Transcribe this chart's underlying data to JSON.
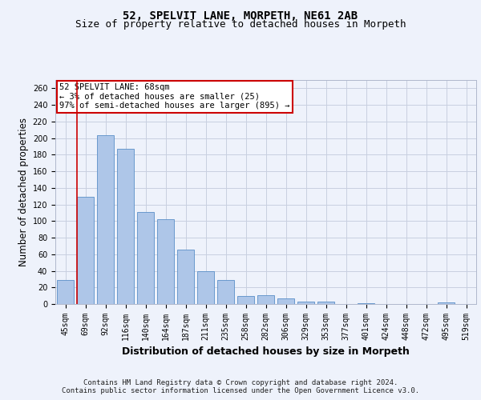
{
  "title_line1": "52, SPELVIT LANE, MORPETH, NE61 2AB",
  "title_line2": "Size of property relative to detached houses in Morpeth",
  "xlabel": "Distribution of detached houses by size in Morpeth",
  "ylabel": "Number of detached properties",
  "categories": [
    "45sqm",
    "69sqm",
    "92sqm",
    "116sqm",
    "140sqm",
    "164sqm",
    "187sqm",
    "211sqm",
    "235sqm",
    "258sqm",
    "282sqm",
    "306sqm",
    "329sqm",
    "353sqm",
    "377sqm",
    "401sqm",
    "424sqm",
    "448sqm",
    "472sqm",
    "495sqm",
    "519sqm"
  ],
  "values": [
    29,
    129,
    203,
    187,
    111,
    102,
    66,
    40,
    29,
    10,
    11,
    7,
    3,
    3,
    0,
    1,
    0,
    0,
    0,
    2,
    0
  ],
  "bar_color": "#aec6e8",
  "bar_edge_color": "#5a8fc8",
  "annotation_text": "52 SPELVIT LANE: 68sqm\n← 3% of detached houses are smaller (25)\n97% of semi-detached houses are larger (895) →",
  "annotation_box_color": "#ffffff",
  "annotation_box_edge_color": "#cc0000",
  "vline_color": "#cc0000",
  "ylim": [
    0,
    270
  ],
  "yticks": [
    0,
    20,
    40,
    60,
    80,
    100,
    120,
    140,
    160,
    180,
    200,
    220,
    240,
    260
  ],
  "footer_line1": "Contains HM Land Registry data © Crown copyright and database right 2024.",
  "footer_line2": "Contains public sector information licensed under the Open Government Licence v3.0.",
  "bg_color": "#eef2fb",
  "plot_bg_color": "#eef2fb",
  "grid_color": "#c8cfe0",
  "title_fontsize": 10,
  "subtitle_fontsize": 9,
  "axis_label_fontsize": 8.5,
  "tick_fontsize": 7,
  "annotation_fontsize": 7.5,
  "footer_fontsize": 6.5
}
